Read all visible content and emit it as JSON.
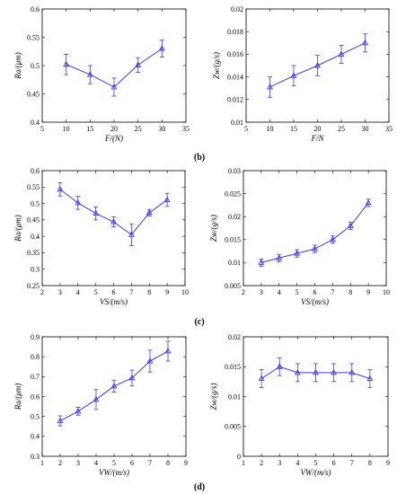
{
  "panel_labels": [
    "(b)",
    "(c)",
    "(d)"
  ],
  "chart_data": [
    {
      "type": "line",
      "row": 0,
      "col": 0,
      "xlabel": "F/(N)",
      "ylabel": "Ra/(μm)",
      "xlim": [
        5,
        35
      ],
      "ylim": [
        0.4,
        0.6
      ],
      "xticks": [
        "5",
        "10",
        "15",
        "20",
        "25",
        "30",
        "35"
      ],
      "yticks": [
        "0.4",
        "0.45",
        "0.5",
        "0.55",
        "0.6"
      ],
      "x": [
        10,
        15,
        20,
        25,
        30
      ],
      "y": [
        0.502,
        0.484,
        0.462,
        0.501,
        0.53
      ],
      "err": [
        0.018,
        0.016,
        0.016,
        0.013,
        0.015
      ],
      "color": "#3b3bdc"
    },
    {
      "type": "line",
      "row": 0,
      "col": 1,
      "xlabel": "F/N",
      "ylabel": "Zw/(g/s)",
      "xlim": [
        5,
        35
      ],
      "ylim": [
        0.01,
        0.02
      ],
      "xticks": [
        "5",
        "10",
        "15",
        "20",
        "25",
        "30",
        "35"
      ],
      "yticks": [
        "0.01",
        "0.012",
        "0.014",
        "0.016",
        "0.018",
        "0.02"
      ],
      "x": [
        10,
        15,
        20,
        25,
        30
      ],
      "y": [
        0.0131,
        0.0141,
        0.015,
        0.016,
        0.017
      ],
      "err": [
        0.0009,
        0.0009,
        0.0009,
        0.0008,
        0.0008
      ],
      "color": "#3b3bdc"
    },
    {
      "type": "line",
      "row": 1,
      "col": 0,
      "xlabel": "VS/(m/s)",
      "ylabel": "Ra/(μm)",
      "xlim": [
        2,
        10
      ],
      "ylim": [
        0.25,
        0.6
      ],
      "xticks": [
        "2",
        "3",
        "4",
        "5",
        "6",
        "7",
        "8",
        "9",
        "10"
      ],
      "yticks": [
        "0.25",
        "0.3",
        "0.35",
        "0.4",
        "0.45",
        "0.5",
        "0.55",
        "0.6"
      ],
      "x": [
        3,
        4,
        5,
        6,
        7,
        8,
        9
      ],
      "y": [
        0.543,
        0.502,
        0.47,
        0.444,
        0.405,
        0.472,
        0.511
      ],
      "err": [
        0.02,
        0.02,
        0.02,
        0.015,
        0.033,
        0.01,
        0.02
      ],
      "color": "#3b3bdc"
    },
    {
      "type": "line",
      "row": 1,
      "col": 1,
      "xlabel": "VS/(m/s)",
      "ylabel": "Zw/(g/s)",
      "xlim": [
        2,
        10
      ],
      "ylim": [
        0.005,
        0.03
      ],
      "xticks": [
        "2",
        "3",
        "4",
        "5",
        "6",
        "7",
        "8",
        "9",
        "10"
      ],
      "yticks": [
        "0.005",
        "0.01",
        "0.015",
        "0.02",
        "0.025",
        "0.03"
      ],
      "x": [
        3,
        4,
        5,
        6,
        7,
        8,
        9
      ],
      "y": [
        0.01,
        0.011,
        0.012,
        0.013,
        0.015,
        0.018,
        0.023
      ],
      "err": [
        0.0008,
        0.0008,
        0.0008,
        0.0008,
        0.0008,
        0.0008,
        0.0008
      ],
      "color": "#3b3bdc"
    },
    {
      "type": "line",
      "row": 2,
      "col": 0,
      "xlabel": "VW/(m/s)",
      "ylabel": "Ra/(μm)",
      "xlim": [
        1,
        9
      ],
      "ylim": [
        0.3,
        0.9
      ],
      "xticks": [
        "1",
        "2",
        "3",
        "4",
        "5",
        "6",
        "7",
        "8",
        "9"
      ],
      "yticks": [
        "0.3",
        "0.4",
        "0.5",
        "0.6",
        "0.7",
        "0.8",
        "0.9"
      ],
      "x": [
        2,
        3,
        4,
        5,
        6,
        7,
        8
      ],
      "y": [
        0.478,
        0.526,
        0.585,
        0.652,
        0.693,
        0.778,
        0.828
      ],
      "err": [
        0.025,
        0.02,
        0.05,
        0.03,
        0.04,
        0.055,
        0.05
      ],
      "color": "#3b3bdc"
    },
    {
      "type": "line",
      "row": 2,
      "col": 1,
      "xlabel": "VW/(m/s)",
      "ylabel": "Zw/(g/s)",
      "xlim": [
        1,
        9
      ],
      "ylim": [
        0,
        0.02
      ],
      "xticks": [
        "1",
        "2",
        "3",
        "4",
        "5",
        "6",
        "7",
        "8",
        "9"
      ],
      "yticks": [
        "0",
        "0.005",
        "0.01",
        "0.015",
        "0.02"
      ],
      "x": [
        2,
        3,
        4,
        5,
        6,
        7,
        8
      ],
      "y": [
        0.013,
        0.015,
        0.014,
        0.014,
        0.014,
        0.014,
        0.013
      ],
      "err": [
        0.0015,
        0.0015,
        0.0015,
        0.0015,
        0.0015,
        0.0015,
        0.0015
      ],
      "color": "#3b3bdc"
    }
  ]
}
